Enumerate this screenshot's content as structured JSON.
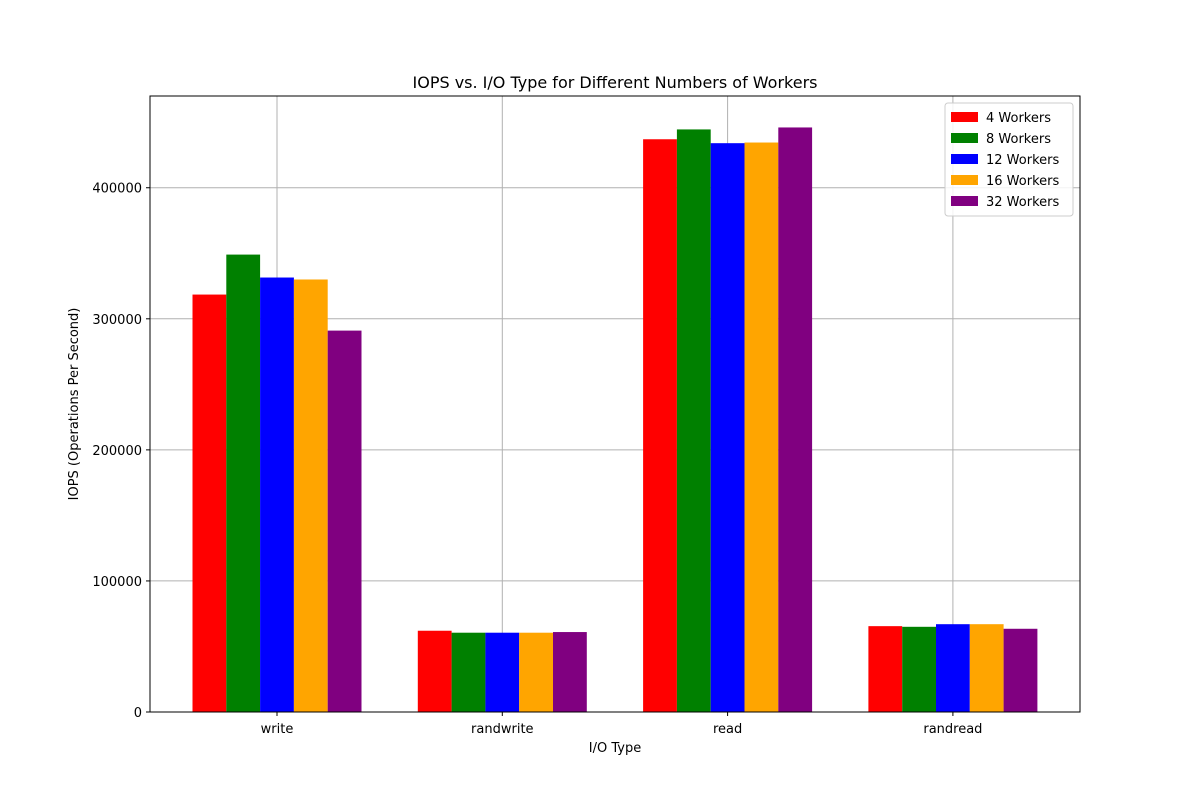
{
  "chart_data": {
    "type": "bar",
    "title": "IOPS vs. I/O Type for Different Numbers of Workers",
    "xlabel": "I/O Type",
    "ylabel": "IOPS (Operations Per Second)",
    "categories": [
      "write",
      "randwrite",
      "read",
      "randread"
    ],
    "ylim": [
      0,
      470000
    ],
    "yticks": [
      0,
      100000,
      200000,
      300000,
      400000
    ],
    "grid": true,
    "legend_position": "top-right",
    "series": [
      {
        "name": "4 Workers",
        "color": "#ff0000",
        "values": [
          318500,
          62000,
          437000,
          65500
        ]
      },
      {
        "name": "8 Workers",
        "color": "#008000",
        "values": [
          349000,
          60500,
          444500,
          65000
        ]
      },
      {
        "name": "12 Workers",
        "color": "#0000ff",
        "values": [
          331500,
          60500,
          434000,
          67000
        ]
      },
      {
        "name": "16 Workers",
        "color": "#ffa500",
        "values": [
          330000,
          60500,
          434500,
          67000
        ]
      },
      {
        "name": "32 Workers",
        "color": "#800080",
        "values": [
          291000,
          61000,
          446000,
          63500
        ]
      }
    ]
  }
}
